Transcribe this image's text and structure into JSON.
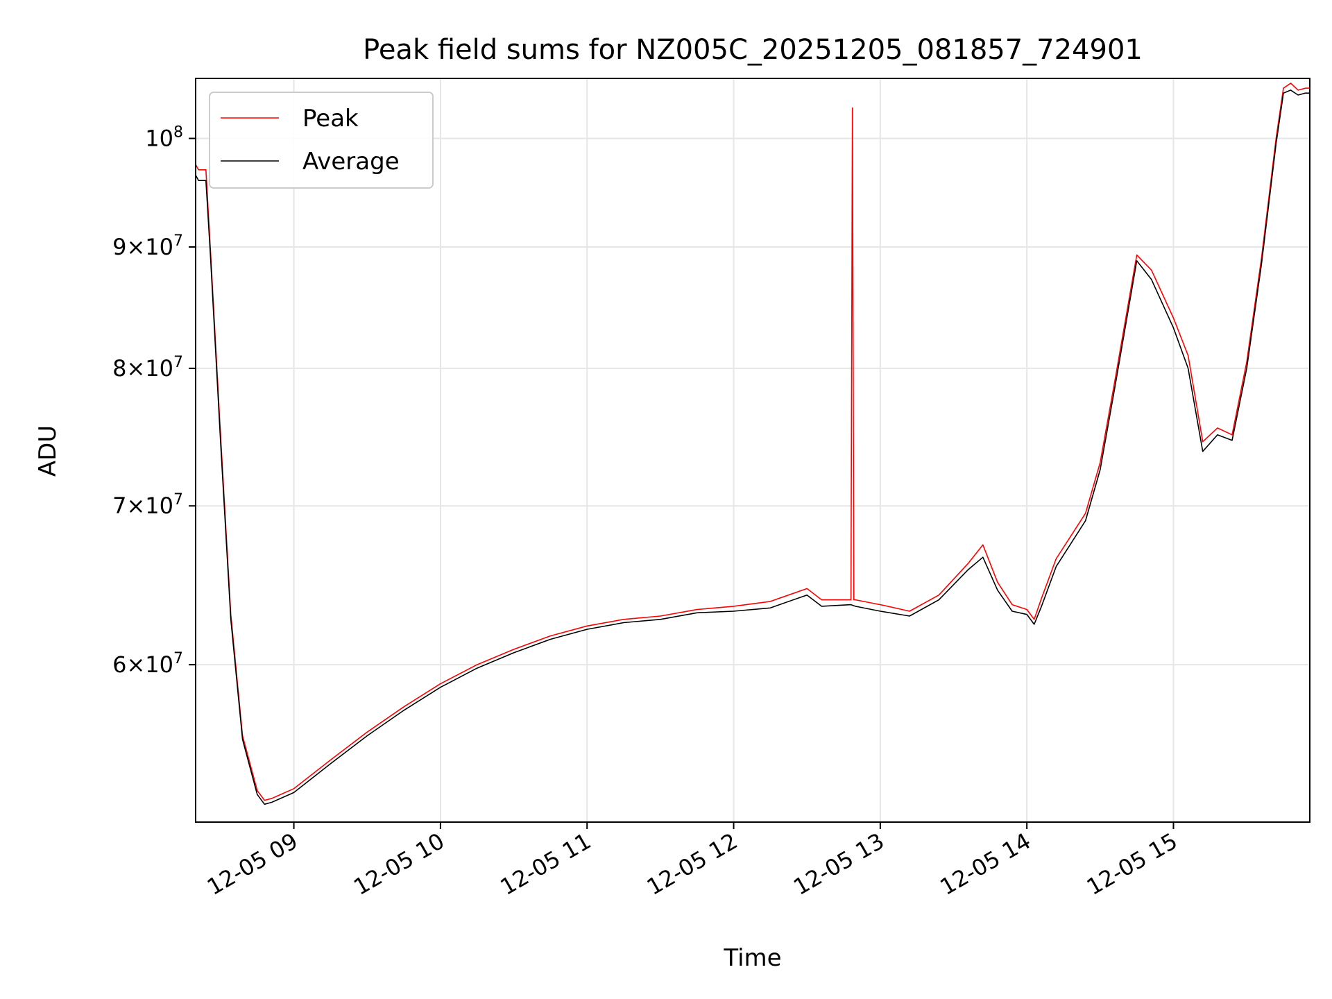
{
  "chart_data": {
    "type": "line",
    "title": "Peak field sums for NZ005C_20251205_081857_724901",
    "xlabel": "Time",
    "ylabel": "ADU",
    "x_unit": "hours (local time on 2025-12-05)",
    "xlim": [
      8.33,
      15.93
    ],
    "ylim": [
      51500000,
      106000000
    ],
    "y_scale": "log",
    "grid": true,
    "legend_position": "upper-left",
    "x_ticks": [
      {
        "value": 9,
        "label": "12-05 09"
      },
      {
        "value": 10,
        "label": "12-05 10"
      },
      {
        "value": 11,
        "label": "12-05 11"
      },
      {
        "value": 12,
        "label": "12-05 12"
      },
      {
        "value": 13,
        "label": "12-05 13"
      },
      {
        "value": 14,
        "label": "12-05 14"
      },
      {
        "value": 15,
        "label": "12-05 15"
      }
    ],
    "y_ticks": [
      {
        "value": 60000000,
        "mantissa": "6",
        "base": "10",
        "exp": "7"
      },
      {
        "value": 70000000,
        "mantissa": "7",
        "base": "10",
        "exp": "7"
      },
      {
        "value": 80000000,
        "mantissa": "8",
        "base": "10",
        "exp": "7"
      },
      {
        "value": 90000000,
        "mantissa": "9",
        "base": "10",
        "exp": "7"
      },
      {
        "value": 100000000,
        "mantissa": "",
        "base": "10",
        "exp": "8"
      }
    ],
    "series": [
      {
        "name": "Peak",
        "color": "#ff0000",
        "x": [
          8.33,
          8.35,
          8.4,
          8.43,
          8.5,
          8.57,
          8.65,
          8.75,
          8.8,
          8.85,
          9.0,
          9.25,
          9.5,
          9.75,
          10.0,
          10.25,
          10.5,
          10.75,
          11.0,
          11.25,
          11.5,
          11.75,
          12.0,
          12.25,
          12.5,
          12.6,
          12.8,
          12.81,
          12.82,
          12.83,
          13.0,
          13.2,
          13.4,
          13.6,
          13.7,
          13.8,
          13.9,
          14.0,
          14.05,
          14.1,
          14.2,
          14.4,
          14.5,
          14.6,
          14.75,
          14.85,
          15.0,
          15.1,
          15.2,
          15.3,
          15.4,
          15.5,
          15.6,
          15.7,
          15.75,
          15.8,
          15.85,
          15.9,
          15.93
        ],
        "values": [
          97500000,
          97000000,
          97000000,
          90000000,
          75000000,
          63000000,
          56000000,
          53100000,
          52600000,
          52700000,
          53200000,
          54700000,
          56200000,
          57600000,
          58900000,
          60000000,
          60900000,
          61700000,
          62300000,
          62700000,
          62900000,
          63300000,
          63500000,
          63800000,
          64600000,
          63900000,
          63900000,
          103000000,
          63900000,
          63900000,
          63600000,
          63200000,
          64200000,
          66200000,
          67400000,
          65000000,
          63600000,
          63300000,
          62700000,
          64000000,
          66500000,
          69500000,
          73000000,
          79000000,
          89300000,
          88000000,
          84000000,
          81000000,
          74500000,
          75500000,
          75000000,
          80500000,
          89000000,
          100000000,
          105000000,
          105500000,
          104800000,
          105000000,
          105000000
        ]
      },
      {
        "name": "Average",
        "color": "#000000",
        "x": [
          8.33,
          8.35,
          8.4,
          8.43,
          8.5,
          8.57,
          8.65,
          8.75,
          8.8,
          8.85,
          9.0,
          9.25,
          9.5,
          9.75,
          10.0,
          10.25,
          10.5,
          10.75,
          11.0,
          11.25,
          11.5,
          11.75,
          12.0,
          12.25,
          12.5,
          12.6,
          12.8,
          12.83,
          13.0,
          13.2,
          13.4,
          13.6,
          13.7,
          13.8,
          13.9,
          14.0,
          14.05,
          14.1,
          14.2,
          14.4,
          14.5,
          14.6,
          14.75,
          14.85,
          15.0,
          15.1,
          15.2,
          15.3,
          15.4,
          15.5,
          15.6,
          15.7,
          15.75,
          15.8,
          15.85,
          15.9,
          15.93
        ],
        "values": [
          96500000,
          96000000,
          96000000,
          89500000,
          74500000,
          62700000,
          55800000,
          52900000,
          52400000,
          52500000,
          53000000,
          54500000,
          56000000,
          57400000,
          58700000,
          59800000,
          60700000,
          61500000,
          62100000,
          62500000,
          62700000,
          63100000,
          63200000,
          63400000,
          64200000,
          63500000,
          63600000,
          63500000,
          63200000,
          62900000,
          63900000,
          65800000,
          66600000,
          64500000,
          63200000,
          63000000,
          62400000,
          63500000,
          66000000,
          69000000,
          72500000,
          78500000,
          88800000,
          87200000,
          83200000,
          80000000,
          73800000,
          75000000,
          74600000,
          80000000,
          88500000,
          99500000,
          104500000,
          104800000,
          104300000,
          104500000,
          104500000
        ]
      }
    ]
  }
}
